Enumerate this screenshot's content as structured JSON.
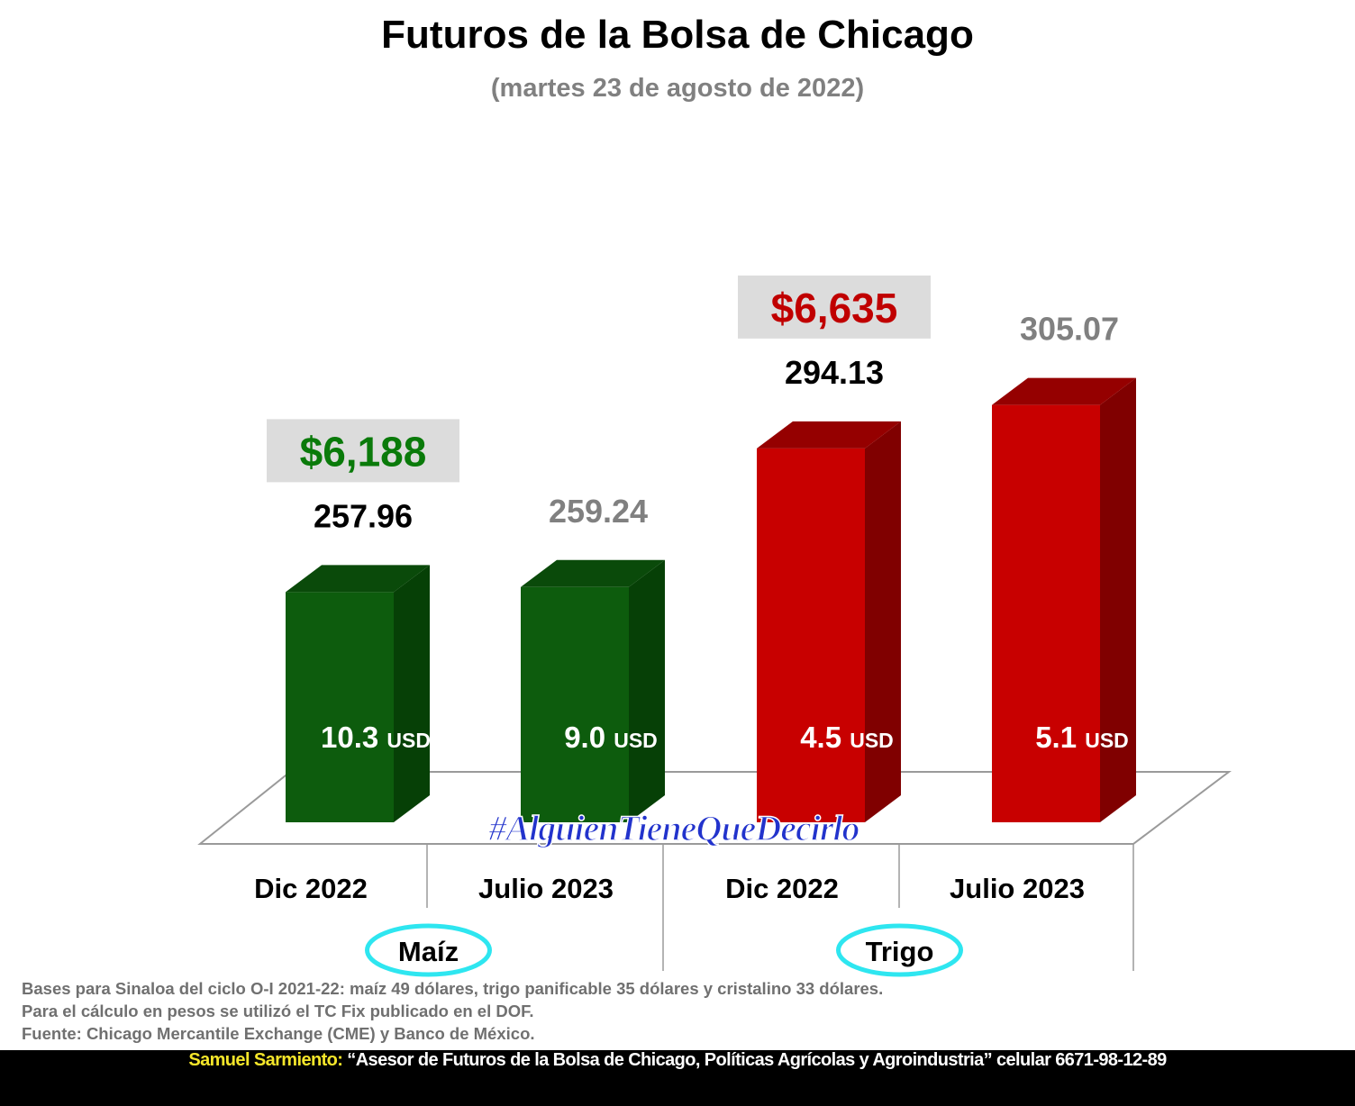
{
  "header": {
    "title": "Futuros de la Bolsa de Chicago",
    "subtitle": "(martes 23 de agosto de 2022)"
  },
  "chart_data": {
    "type": "bar",
    "title": "Futuros de la Bolsa de Chicago",
    "subtitle": "(martes 23 de agosto de 2022)",
    "ylim": [
      200,
      320
    ],
    "groups": [
      "Maíz",
      "Trigo"
    ],
    "categories": [
      "Dic 2022",
      "Julio 2023",
      "Dic 2022",
      "Julio 2023"
    ],
    "group_of_category": [
      0,
      0,
      1,
      1
    ],
    "values": [
      257.96,
      259.24,
      294.13,
      305.07
    ],
    "value_labels": [
      "257.96",
      "259.24",
      "294.13",
      "305.07"
    ],
    "value_label_colors": [
      "#000000",
      "#808080",
      "#000000",
      "#808080"
    ],
    "bar_colors": [
      "#0d5c0d",
      "#0d5c0d",
      "#c80000",
      "#c80000"
    ],
    "bar_side_colors": [
      "#064006",
      "#064006",
      "#800000",
      "#800000"
    ],
    "bar_top_colors": [
      "#0a4a0a",
      "#0a4a0a",
      "#950000",
      "#950000"
    ],
    "inner_labels": [
      {
        "value": "10.3",
        "unit": "USD"
      },
      {
        "value": "9.0",
        "unit": "USD"
      },
      {
        "value": "4.5",
        "unit": "USD"
      },
      {
        "value": "5.1",
        "unit": "USD"
      }
    ],
    "peso_prices": [
      {
        "category_index": 0,
        "label": "$6,188",
        "color": "#0a7a0a"
      },
      {
        "category_index": 2,
        "label": "$6,635",
        "color": "#c00000"
      }
    ],
    "group_label_ring_color": "#2ee6f0",
    "grid": false
  },
  "watermark": "#AlguienTieneQueDecirlo",
  "notes": [
    "Bases para Sinaloa del ciclo O-I 2021-22: maíz 49 dólares, trigo panificable 35 dólares y cristalino 33 dólares.",
    "Para el cálculo en pesos se utilizó el TC Fix publicado en el DOF.",
    "Fuente: Chicago Mercantile Exchange (CME) y Banco de México."
  ],
  "footer": {
    "author": "Samuel Sarmiento:",
    "text": "“Asesor de Futuros de la Bolsa de Chicago, Políticas Agrícolas y Agroindustria” celular 6671-98-12-89"
  }
}
